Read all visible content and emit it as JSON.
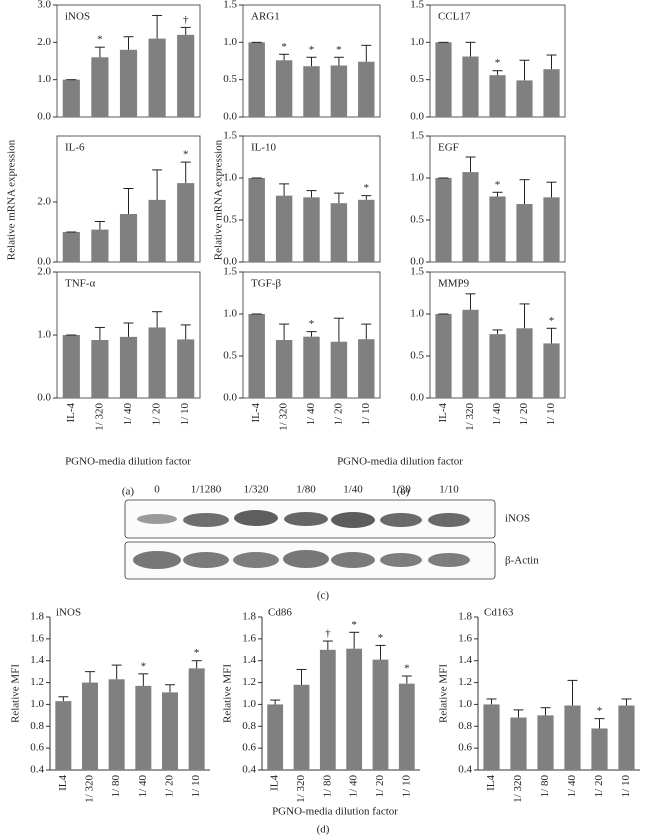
{
  "figure": {
    "panels": [
      {
        "label": "(a)",
        "ylabel": "Relative mRNA expression",
        "xlabel": "PGNO-media dilution factor"
      },
      {
        "label": "(b)",
        "ylabel": "Relative mRNA expression",
        "xlabel": "PGNO-media dilution factor"
      },
      {
        "label": "(c)"
      },
      {
        "label": "(d)",
        "xlabel": "PGNO-media dilution factor"
      }
    ]
  },
  "blot": {
    "lanes": [
      "0",
      "1/1280",
      "1/320",
      "1/80",
      "1/40",
      "1/20",
      "1/10"
    ],
    "rows": [
      "iNOS",
      "β-Actin"
    ]
  },
  "chart_data": [
    {
      "type": "bar",
      "title": "iNOS",
      "frame": "box",
      "color": "#808080",
      "values": [
        1.0,
        1.6,
        1.8,
        2.1,
        2.2
      ],
      "errors": [
        0,
        0.27,
        0.35,
        0.62,
        0.2
      ],
      "annotations": [
        null,
        "*",
        null,
        null,
        "†"
      ],
      "ylim": [
        0,
        3
      ],
      "yticks": [
        {
          "value": 0,
          "label": "0.0"
        },
        {
          "value": 1,
          "label": "1.0"
        },
        {
          "value": 2,
          "label": "2.0"
        },
        {
          "value": 3,
          "label": "3.0"
        }
      ]
    },
    {
      "type": "bar",
      "title": "IL-6",
      "frame": "box",
      "color": "#808080",
      "values": [
        1.0,
        1.08,
        1.6,
        2.07,
        2.63
      ],
      "errors": [
        0,
        0.27,
        0.85,
        1.0,
        0.7
      ],
      "annotations": [
        null,
        null,
        null,
        null,
        "*"
      ],
      "ylim": [
        0,
        4.2
      ],
      "yticks": [
        {
          "value": 0,
          "label": "0.0"
        },
        {
          "value": 2,
          "label": "2.0"
        }
      ]
    },
    {
      "type": "bar",
      "title": "TNF-α",
      "frame": "box",
      "color": "#808080",
      "categories": [
        "IL-4",
        "1/ 320",
        "1/ 40",
        "1/ 20",
        "1/ 10"
      ],
      "values": [
        1.0,
        0.92,
        0.97,
        1.12,
        0.93
      ],
      "errors": [
        0,
        0.2,
        0.22,
        0.25,
        0.23
      ],
      "annotations": [
        null,
        null,
        null,
        null,
        null
      ],
      "ylim": [
        0,
        2
      ],
      "yticks": [
        {
          "value": 0,
          "label": "0.0"
        },
        {
          "value": 1,
          "label": "1.0"
        },
        {
          "value": 2,
          "label": "2.0"
        }
      ]
    },
    {
      "type": "bar",
      "title": "ARG1",
      "frame": "box",
      "color": "#808080",
      "values": [
        1.0,
        0.76,
        0.68,
        0.69,
        0.74
      ],
      "errors": [
        0,
        0.08,
        0.12,
        0.11,
        0.22
      ],
      "annotations": [
        null,
        "*",
        "*",
        "*",
        null
      ],
      "ylim": [
        0,
        1.5
      ],
      "yticks": [
        {
          "value": 0,
          "label": "0.0"
        },
        0.5,
        {
          "value": 1,
          "label": "1.0"
        },
        1.5
      ]
    },
    {
      "type": "bar",
      "title": "CCL17",
      "frame": "box",
      "color": "#808080",
      "values": [
        1.0,
        0.81,
        0.56,
        0.49,
        0.64
      ],
      "errors": [
        0,
        0.19,
        0.06,
        0.27,
        0.19
      ],
      "annotations": [
        null,
        null,
        "*",
        null,
        null
      ],
      "ylim": [
        0,
        1.5
      ],
      "yticks": [
        {
          "value": 0,
          "label": "0.0"
        },
        0.5,
        {
          "value": 1,
          "label": "1.0"
        },
        1.5
      ]
    },
    {
      "type": "bar",
      "title": "IL-10",
      "frame": "box",
      "color": "#808080",
      "values": [
        1.0,
        0.79,
        0.77,
        0.7,
        0.74
      ],
      "errors": [
        0,
        0.14,
        0.08,
        0.12,
        0.05
      ],
      "annotations": [
        null,
        null,
        null,
        null,
        "*"
      ],
      "ylim": [
        0,
        1.5
      ],
      "yticks": [
        {
          "value": 0,
          "label": "0.0"
        },
        0.5,
        {
          "value": 1,
          "label": "1.0"
        },
        1.5
      ]
    },
    {
      "type": "bar",
      "title": "EGF",
      "frame": "box",
      "color": "#808080",
      "values": [
        1.0,
        1.07,
        0.78,
        0.69,
        0.77
      ],
      "errors": [
        0,
        0.18,
        0.05,
        0.29,
        0.18
      ],
      "annotations": [
        null,
        null,
        "*",
        null,
        null
      ],
      "ylim": [
        0,
        1.5
      ],
      "yticks": [
        {
          "value": 0,
          "label": "0.0"
        },
        0.5,
        {
          "value": 1,
          "label": "1.0"
        },
        1.5
      ]
    },
    {
      "type": "bar",
      "title": "TGF-β",
      "frame": "box",
      "color": "#808080",
      "categories": [
        "IL-4",
        "1/ 320",
        "1/ 40",
        "1/ 20",
        "1/ 10"
      ],
      "values": [
        1.0,
        0.69,
        0.73,
        0.67,
        0.7
      ],
      "errors": [
        0,
        0.19,
        0.06,
        0.28,
        0.18
      ],
      "annotations": [
        null,
        null,
        "*",
        null,
        null
      ],
      "ylim": [
        0,
        1.5
      ],
      "yticks": [
        {
          "value": 0,
          "label": "0.0"
        },
        0.5,
        {
          "value": 1,
          "label": "1.0"
        },
        1.5
      ]
    },
    {
      "type": "bar",
      "title": "MMP9",
      "frame": "box",
      "color": "#808080",
      "categories": [
        "IL-4",
        "1/ 320",
        "1/ 40",
        "1/ 20",
        "1/ 10"
      ],
      "values": [
        1.0,
        1.05,
        0.76,
        0.83,
        0.65
      ],
      "errors": [
        0,
        0.19,
        0.05,
        0.29,
        0.18
      ],
      "annotations": [
        null,
        null,
        null,
        null,
        "*"
      ],
      "ylim": [
        0,
        1.5
      ],
      "yticks": [
        {
          "value": 0,
          "label": "0.0"
        },
        0.5,
        {
          "value": 1,
          "label": "1.0"
        },
        1.5
      ]
    },
    {
      "type": "bar",
      "title": "iNOS",
      "frame": "axes",
      "ylabel": "Relative MFI",
      "color": "#808080",
      "categories": [
        "IL4",
        "1/ 320",
        "1/ 80",
        "1/ 40",
        "1/ 20",
        "1/ 10"
      ],
      "values": [
        1.03,
        1.2,
        1.23,
        1.17,
        1.11,
        1.33
      ],
      "errors": [
        0.04,
        0.1,
        0.13,
        0.11,
        0.07,
        0.07
      ],
      "annotations": [
        null,
        null,
        null,
        "*",
        null,
        "*"
      ],
      "ylim": [
        0.4,
        1.8
      ],
      "yticks": [
        0.4,
        0.6,
        0.8,
        {
          "value": 1,
          "label": "1.0"
        },
        1.2,
        1.4,
        1.6,
        1.8
      ]
    },
    {
      "type": "bar",
      "title": "Cd86",
      "frame": "axes",
      "ylabel": "Relative MFI",
      "color": "#808080",
      "categories": [
        "IL4",
        "1/ 320",
        "1/ 80",
        "1/ 40",
        "1/ 20",
        "1/ 10"
      ],
      "values": [
        1.0,
        1.18,
        1.5,
        1.51,
        1.41,
        1.19
      ],
      "errors": [
        0.04,
        0.14,
        0.08,
        0.15,
        0.13,
        0.07
      ],
      "annotations": [
        null,
        null,
        "†",
        "*",
        "*",
        "*"
      ],
      "ylim": [
        0.4,
        1.8
      ],
      "yticks": [
        0.4,
        0.6,
        0.8,
        {
          "value": 1,
          "label": "1.0"
        },
        1.2,
        1.4,
        1.6,
        1.8
      ]
    },
    {
      "type": "bar",
      "title": "Cd163",
      "frame": "axes",
      "ylabel": "Relative MFI",
      "color": "#808080",
      "categories": [
        "IL4",
        "1/ 320",
        "1/ 80",
        "1/ 40",
        "1/ 20",
        "1/ 10"
      ],
      "values": [
        1.0,
        0.88,
        0.9,
        0.99,
        0.78,
        0.99
      ],
      "errors": [
        0.05,
        0.07,
        0.07,
        0.23,
        0.09,
        0.06
      ],
      "annotations": [
        null,
        null,
        null,
        null,
        "*",
        null
      ],
      "ylim": [
        0.4,
        1.8
      ],
      "yticks": [
        0.4,
        0.6,
        0.8,
        {
          "value": 1,
          "label": "1.0"
        },
        1.2,
        1.4,
        1.6,
        1.8
      ]
    }
  ]
}
